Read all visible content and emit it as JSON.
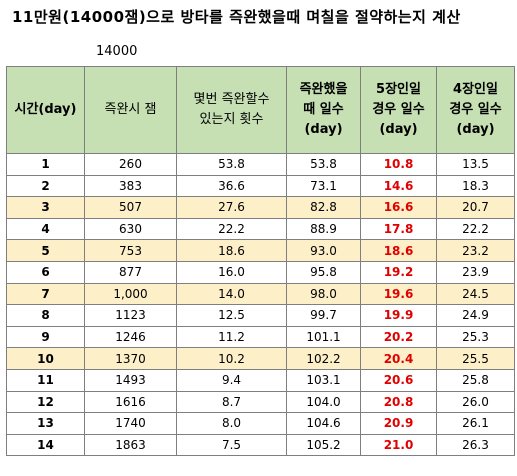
{
  "title": "11만원(14000잼)으로 방타를 즉완했을때 며칠을 절약하는지 계산",
  "gem_amount": "14000",
  "table": {
    "headers": [
      [
        "시간(day)"
      ],
      [
        "즉완시 잼"
      ],
      [
        "몇번 즉완할수",
        "있는지 횟수"
      ],
      [
        "즉완했을",
        "때 일수",
        "(day)"
      ],
      [
        "5장인일",
        "경우 일수",
        "(day)"
      ],
      [
        "4장인일",
        "경우 일수",
        "(day)"
      ]
    ],
    "rows": [
      {
        "day": "1",
        "gems": "260",
        "times": "53.8",
        "days": "53.8",
        "five": "10.8",
        "four": "13.5",
        "alt": false
      },
      {
        "day": "2",
        "gems": "383",
        "times": "36.6",
        "days": "73.1",
        "five": "14.6",
        "four": "18.3",
        "alt": false
      },
      {
        "day": "3",
        "gems": "507",
        "times": "27.6",
        "days": "82.8",
        "five": "16.6",
        "four": "20.7",
        "alt": true
      },
      {
        "day": "4",
        "gems": "630",
        "times": "22.2",
        "days": "88.9",
        "five": "17.8",
        "four": "22.2",
        "alt": false
      },
      {
        "day": "5",
        "gems": "753",
        "times": "18.6",
        "days": "93.0",
        "five": "18.6",
        "four": "23.2",
        "alt": true
      },
      {
        "day": "6",
        "gems": "877",
        "times": "16.0",
        "days": "95.8",
        "five": "19.2",
        "four": "23.9",
        "alt": false
      },
      {
        "day": "7",
        "gems": "1,000",
        "times": "14.0",
        "days": "98.0",
        "five": "19.6",
        "four": "24.5",
        "alt": true
      },
      {
        "day": "8",
        "gems": "1123",
        "times": "12.5",
        "days": "99.7",
        "five": "19.9",
        "four": "24.9",
        "alt": false
      },
      {
        "day": "9",
        "gems": "1246",
        "times": "11.2",
        "days": "101.1",
        "five": "20.2",
        "four": "25.3",
        "alt": false
      },
      {
        "day": "10",
        "gems": "1370",
        "times": "10.2",
        "days": "102.2",
        "five": "20.4",
        "four": "25.5",
        "alt": true
      },
      {
        "day": "11",
        "gems": "1493",
        "times": "9.4",
        "days": "103.1",
        "five": "20.6",
        "four": "25.8",
        "alt": false
      },
      {
        "day": "12",
        "gems": "1616",
        "times": "8.7",
        "days": "104.0",
        "five": "20.8",
        "four": "26.0",
        "alt": false
      },
      {
        "day": "13",
        "gems": "1740",
        "times": "8.0",
        "days": "104.6",
        "five": "20.9",
        "four": "26.1",
        "alt": false
      },
      {
        "day": "14",
        "gems": "1863",
        "times": "7.5",
        "days": "105.2",
        "five": "21.0",
        "four": "26.3",
        "alt": false
      }
    ]
  },
  "colors": {
    "header_bg": "#c6e0b4",
    "alt_row_bg": "#fdefc8",
    "highlight_text": "#e00000"
  }
}
